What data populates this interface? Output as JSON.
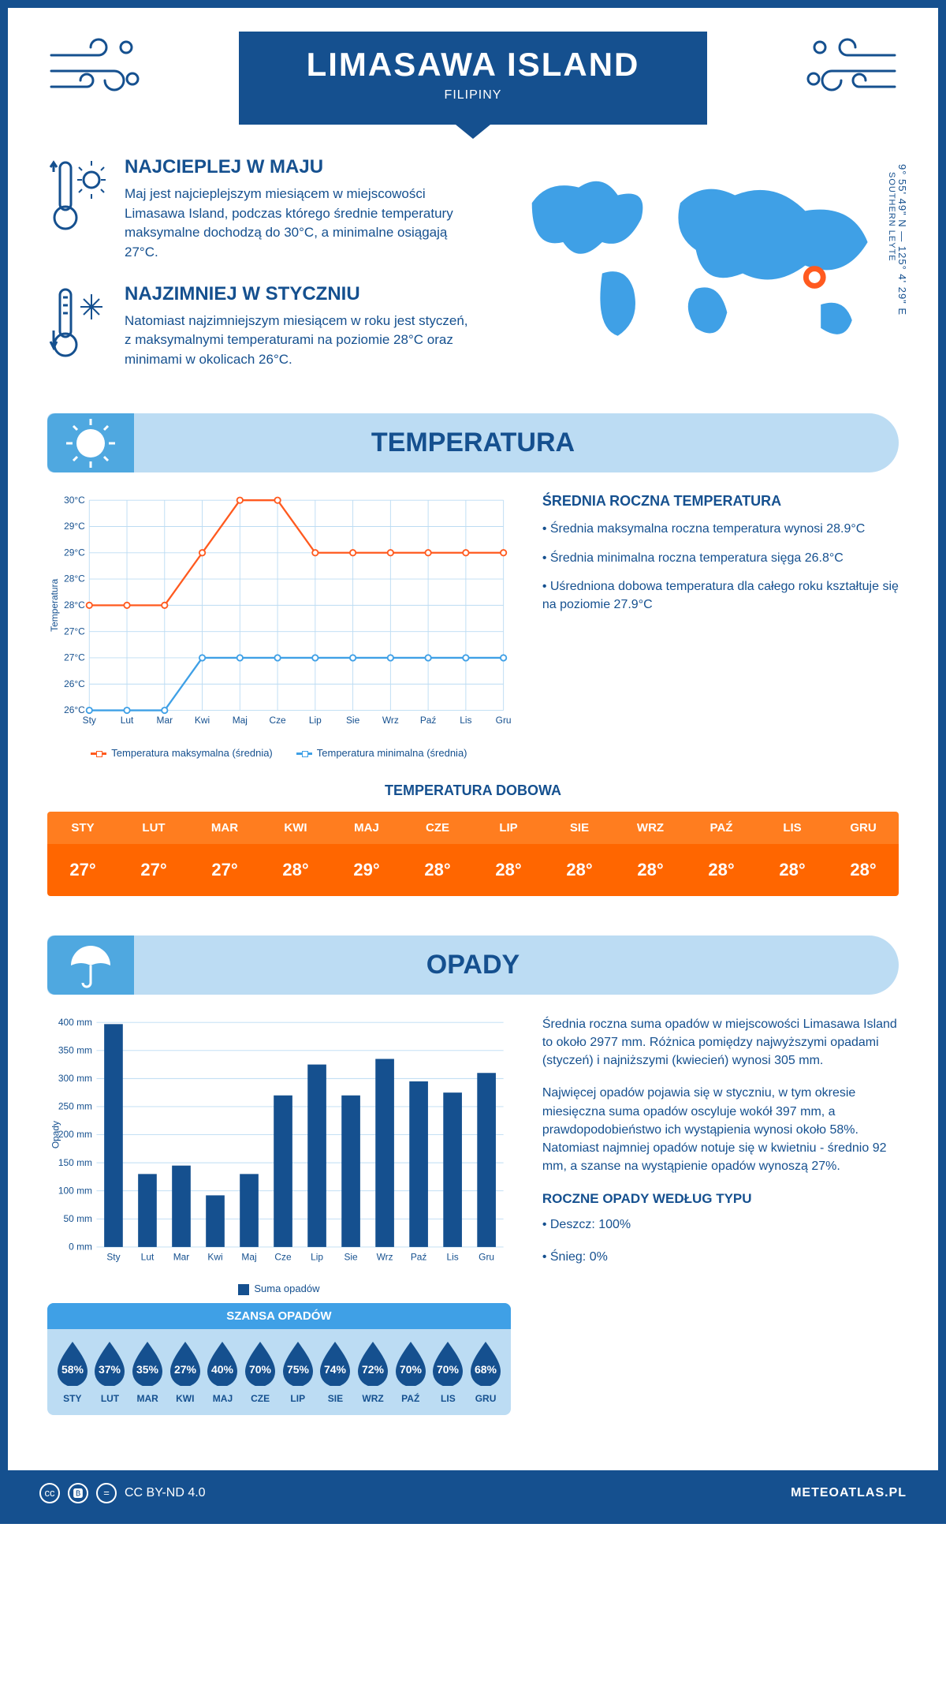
{
  "header": {
    "title": "LIMASAWA ISLAND",
    "country": "FILIPINY"
  },
  "coords": {
    "line": "9° 55' 49\" N — 125° 4' 29\" E",
    "region": "SOUTHERN LEYTE"
  },
  "facts": {
    "hot": {
      "title": "NAJCIEPLEJ W MAJU",
      "text": "Maj jest najcieplejszym miesiącem w miejscowości Limasawa Island, podczas którego średnie temperatury maksymalne dochodzą do 30°C, a minimalne osiągają 27°C."
    },
    "cold": {
      "title": "NAJZIMNIEJ W STYCZNIU",
      "text": "Natomiast najzimniejszym miesiącem w roku jest styczeń, z maksymalnymi temperaturami na poziomie 28°C oraz minimami w okolicach 26°C."
    }
  },
  "section": {
    "temperature": "TEMPERATURA",
    "precip": "OPADY"
  },
  "months": [
    "Sty",
    "Lut",
    "Mar",
    "Kwi",
    "Maj",
    "Cze",
    "Lip",
    "Sie",
    "Wrz",
    "Paź",
    "Lis",
    "Gru"
  ],
  "months_upper": [
    "STY",
    "LUT",
    "MAR",
    "KWI",
    "MAJ",
    "CZE",
    "LIP",
    "SIE",
    "WRZ",
    "PAŹ",
    "LIS",
    "GRU"
  ],
  "temp_chart": {
    "y_label": "Temperatura",
    "ymin": 26,
    "ymax": 30,
    "ystep": 0.5,
    "tick_labels": [
      "26°C",
      "26°C",
      "27°C",
      "27°C",
      "28°C",
      "28°C",
      "29°C",
      "29°C",
      "30°C"
    ],
    "series_max": {
      "label": "Temperatura maksymalna (średnia)",
      "color": "#ff5a1f",
      "values": [
        28,
        28,
        28,
        29,
        30,
        30,
        29,
        29,
        29,
        29,
        29,
        29
      ]
    },
    "series_min": {
      "label": "Temperatura minimalna (średnia)",
      "color": "#3fa0e6",
      "values": [
        26,
        26,
        26,
        27,
        27,
        27,
        27,
        27,
        27,
        27,
        27,
        27
      ]
    }
  },
  "temp_facts": {
    "title": "ŚREDNIA ROCZNA TEMPERATURA",
    "b1": "• Średnia maksymalna roczna temperatura wynosi 28.9°C",
    "b2": "• Średnia minimalna roczna temperatura sięga 26.8°C",
    "b3": "• Uśredniona dobowa temperatura dla całego roku kształtuje się na poziomie 27.9°C"
  },
  "daily": {
    "title": "TEMPERATURA DOBOWA",
    "values": [
      "27°",
      "27°",
      "27°",
      "28°",
      "29°",
      "28°",
      "28°",
      "28°",
      "28°",
      "28°",
      "28°",
      "28°"
    ]
  },
  "precip_chart": {
    "y_label": "Opady",
    "ymax": 400,
    "ystep": 50,
    "tick_labels": [
      "0 mm",
      "50 mm",
      "100 mm",
      "150 mm",
      "200 mm",
      "250 mm",
      "300 mm",
      "350 mm",
      "400 mm"
    ],
    "legend": "Suma opadów",
    "bar_color": "#15508f",
    "values": [
      397,
      130,
      145,
      92,
      130,
      270,
      325,
      270,
      335,
      295,
      275,
      310
    ]
  },
  "precip_text": {
    "p1": "Średnia roczna suma opadów w miejscowości Limasawa Island to około 2977 mm. Różnica pomiędzy najwyższymi opadami (styczeń) i najniższymi (kwiecień) wynosi 305 mm.",
    "p2": "Najwięcej opadów pojawia się w styczniu, w tym okresie miesięczna suma opadów oscyluje wokół 397 mm, a prawdopodobieństwo ich wystąpienia wynosi około 58%. Natomiast najmniej opadów notuje się w kwietniu - średnio 92 mm, a szanse na wystąpienie opadów wynoszą 27%.",
    "type_title": "ROCZNE OPADY WEDŁUG TYPU",
    "type1": "• Deszcz: 100%",
    "type2": "• Śnieg: 0%"
  },
  "chance": {
    "title": "SZANSA OPADÓW",
    "values": [
      "58%",
      "37%",
      "35%",
      "27%",
      "40%",
      "70%",
      "75%",
      "74%",
      "72%",
      "70%",
      "70%",
      "68%"
    ]
  },
  "footer": {
    "license": "CC BY-ND 4.0",
    "site": "METEOATLAS.PL"
  }
}
